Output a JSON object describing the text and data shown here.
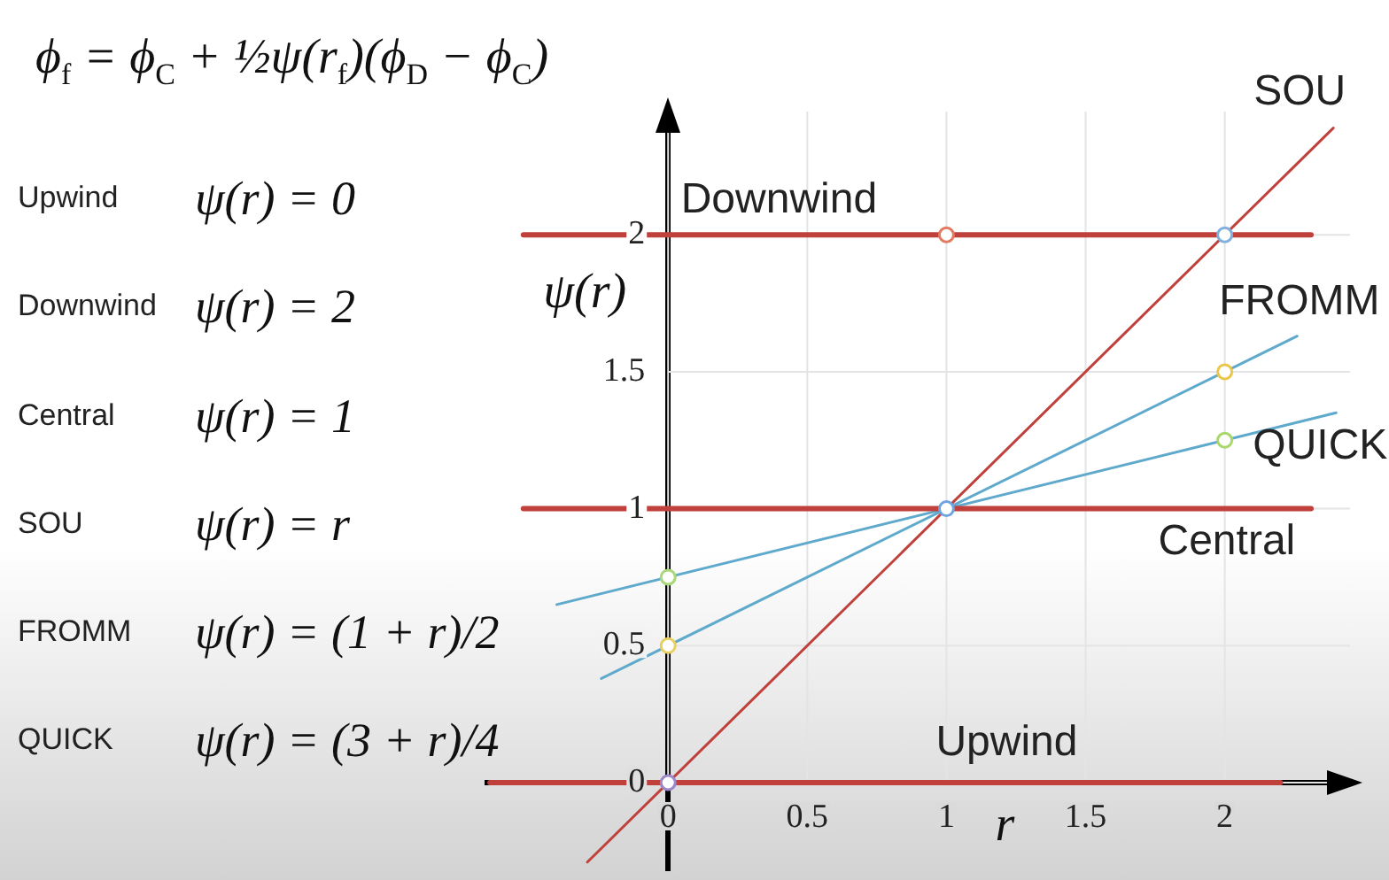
{
  "chart_data": {
    "type": "line",
    "title": "ϕ$_{f}$ = ϕ$_{C}$ + ½ψ(r$_{f}$)(ϕ$_{D}$ − ϕ$_{C}$)",
    "xlabel": "r",
    "ylabel": "ψ(r)",
    "annotations": [
      "Upwind",
      "ψ(r) = 0",
      "Downwind",
      "ψ(r) = 2",
      "Central",
      "ψ(r) = 1",
      "SOU",
      "ψ(r) = r",
      "FROMM",
      "ψ(r) = (1 + r)/2",
      "QUICK",
      "ψ(r) = (3 + r)/4"
    ],
    "series": [
      {
        "name": "Downwind",
        "color": "#c0403c",
        "x": [
          -0.52,
          2.31
        ],
        "values": [
          2,
          2
        ]
      },
      {
        "name": "Central",
        "color": "#c0403c",
        "x": [
          -0.52,
          2.31
        ],
        "values": [
          1,
          1
        ]
      },
      {
        "name": "Upwind",
        "color": "#c0403c",
        "x": [
          -0.64,
          2.2
        ],
        "values": [
          0,
          0
        ]
      },
      {
        "name": "SOU",
        "color": "#c0403c",
        "x": [
          -0.29,
          2.39
        ],
        "values": [
          -0.29,
          2.39
        ]
      },
      {
        "name": "FROMM",
        "color": "#5ea9cc",
        "x": [
          -0.24,
          2.26
        ],
        "values": [
          0.38,
          1.63
        ]
      },
      {
        "name": "QUICK",
        "color": "#5ea9cc",
        "x": [
          -0.4,
          2.4
        ],
        "values": [
          0.65,
          1.35
        ]
      },
      {
        "type": "scatter",
        "marker": "circle",
        "colors": [
          "#e07a60",
          "#7fb0e0",
          "#e8c74a",
          "#a8d86a",
          "#6fa3e0",
          "#a8d878",
          "#e8d060",
          "#9a86c8"
        ],
        "x": [
          1,
          2,
          2,
          2,
          1,
          0,
          0,
          0
        ],
        "values": [
          2,
          2,
          1.5,
          1.25,
          1,
          0.75,
          0.5,
          0
        ]
      }
    ],
    "xlim": [
      -0.65,
      2.45
    ],
    "ylim": [
      -0.32,
      2.45
    ],
    "xticks": [
      0,
      0.5,
      1,
      1.5,
      2
    ],
    "yticks": [
      0,
      0.5,
      1,
      1.5,
      2
    ],
    "grid": true,
    "marker": "none",
    "line_style": "solid"
  }
}
